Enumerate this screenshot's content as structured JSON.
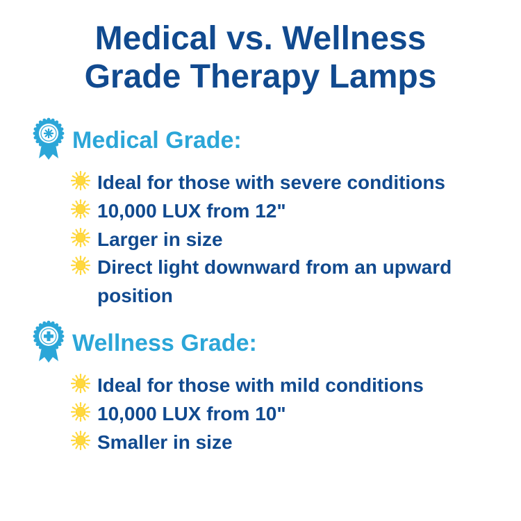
{
  "title_line1": "Medical vs. Wellness",
  "title_line2": "Grade Therapy Lamps",
  "title_color": "#114a8f",
  "title_fontsize": 48,
  "sections": [
    {
      "heading": "Medical Grade:",
      "heading_color": "#2ba6d8",
      "heading_fontsize": 34,
      "badge_color": "#2ba6d8",
      "badge_label": "MEDICAL GRADE",
      "bullets": [
        "Ideal for those with severe conditions",
        "10,000 LUX from 12\"",
        "Larger in size",
        "Direct light downward from an upward position"
      ]
    },
    {
      "heading": "Wellness Grade:",
      "heading_color": "#2ba6d8",
      "heading_fontsize": 34,
      "badge_color": "#2ba6d8",
      "badge_label": "WELLNESS GRADE",
      "bullets": [
        "Ideal for those with mild conditions",
        "10,000 LUX from 10\"",
        "Smaller in size"
      ]
    }
  ],
  "bullet_text_color": "#114a8f",
  "bullet_text_fontsize": 28,
  "sun_color_fill": "#ffd83d",
  "sun_color_stroke": "#f5b800",
  "background_color": "#ffffff"
}
